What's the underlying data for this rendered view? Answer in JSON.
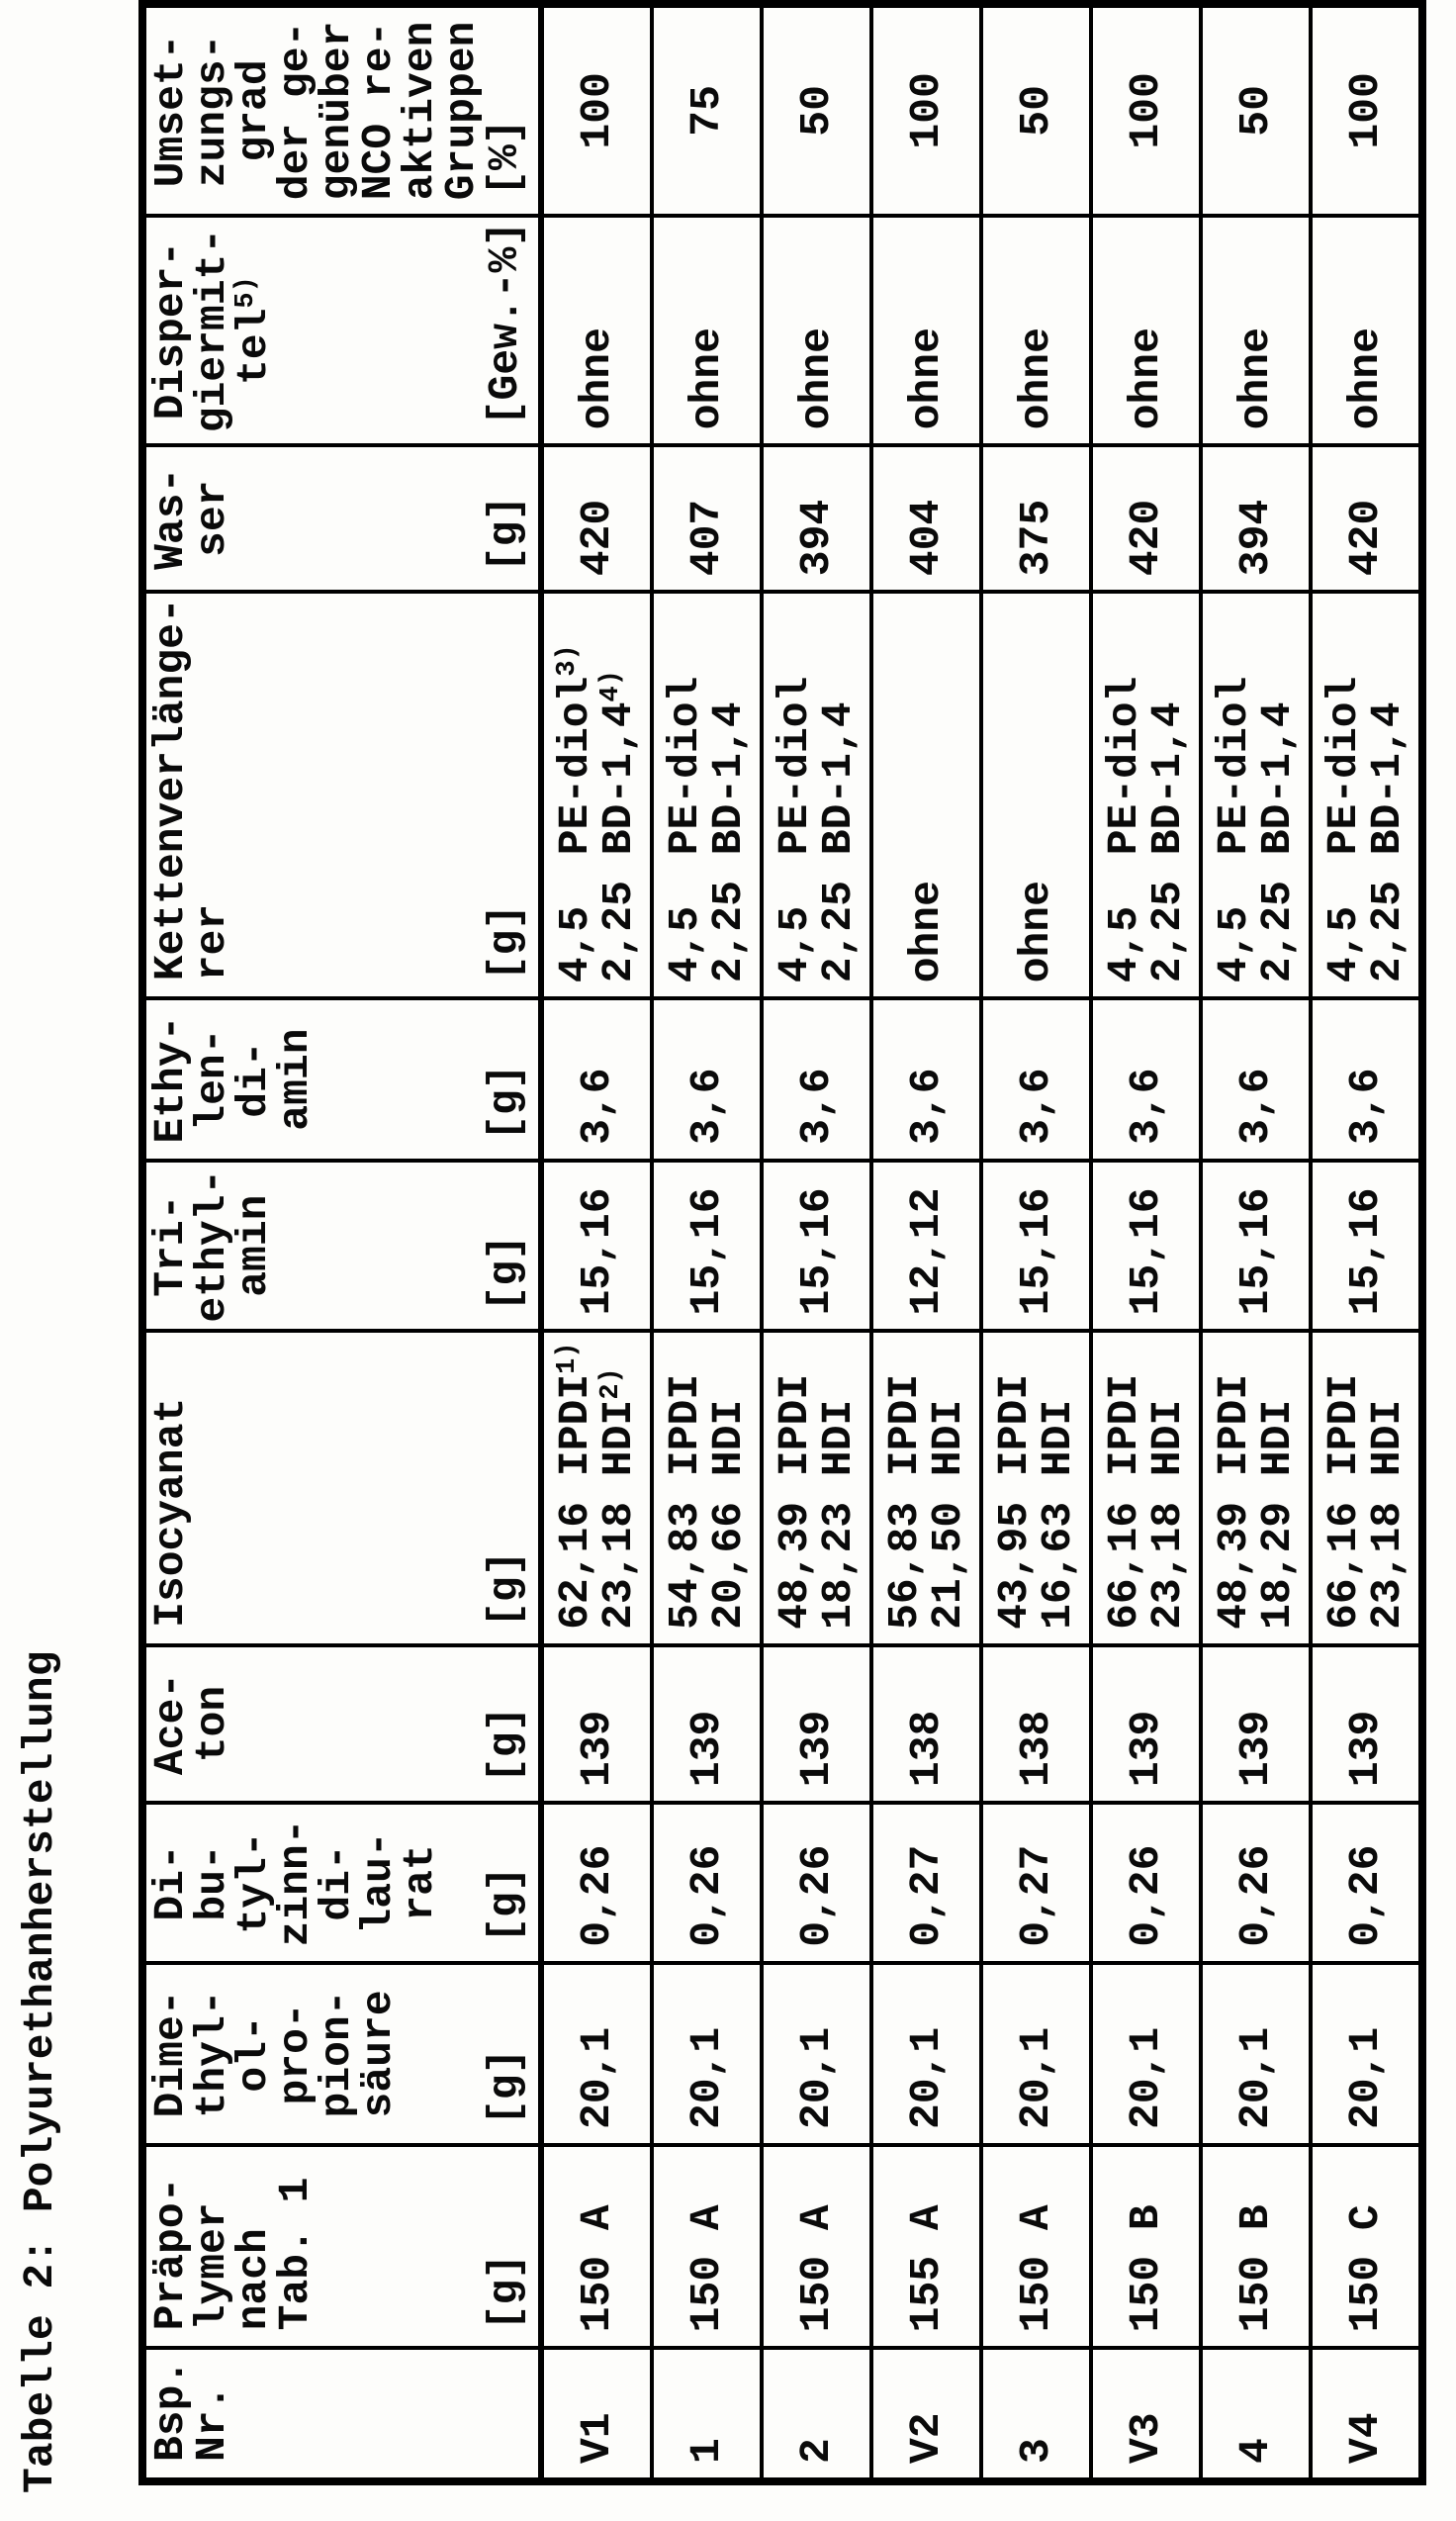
{
  "title": "Tabelle 2: Polyurethanherstellung",
  "table": {
    "columns": [
      {
        "id": "bsp",
        "label_lines": [
          "Bsp.",
          "Nr."
        ],
        "unit": ""
      },
      {
        "id": "praepolymer",
        "label_lines": [
          "Präpo-",
          "lymer",
          "nach",
          "Tab. 1"
        ],
        "unit": "[g]"
      },
      {
        "id": "dmps",
        "label_lines": [
          "Dime-",
          "thyl-",
          "ol-",
          "pro-",
          "pion-",
          "säure"
        ],
        "unit": "[g]"
      },
      {
        "id": "dbtl",
        "label_lines": [
          "Di-",
          "bu-",
          "tyl-",
          "zinn-",
          "di-",
          "lau-",
          "rat"
        ],
        "unit": "[g]"
      },
      {
        "id": "aceton",
        "label_lines": [
          "Ace-",
          "ton"
        ],
        "unit": "[g]"
      },
      {
        "id": "isocyanat",
        "label_lines": [
          "Isocyanat"
        ],
        "unit": "[g]"
      },
      {
        "id": "triethylamin",
        "label_lines": [
          "Tri-",
          "ethyl-",
          "amin"
        ],
        "unit": "[g]"
      },
      {
        "id": "ethylendiamin",
        "label_lines": [
          "Ethy-",
          "len-",
          "di-",
          "amin"
        ],
        "unit": "[g]"
      },
      {
        "id": "kettenverlaengerer",
        "label_lines": [
          "Kettenverlänge-",
          "rer"
        ],
        "unit": "[g]"
      },
      {
        "id": "wasser",
        "label_lines": [
          "Was-",
          "ser"
        ],
        "unit": "[g]"
      },
      {
        "id": "dispergiermittel",
        "label_lines": [
          "Disper-",
          "giermit-",
          {
            "t": "tel",
            "sup": "5)"
          }
        ],
        "unit": "[Gew.-%]"
      },
      {
        "id": "umsetzungsgrad",
        "label_lines": [
          "Umset-",
          "zungs-",
          "grad",
          "der ge-",
          "genüber",
          "NCO re-",
          "aktiven",
          "Gruppen"
        ],
        "unit": "[%]"
      }
    ],
    "rows": [
      {
        "bsp": "V1",
        "praepolymer": "150 A",
        "dmps": "20,1",
        "dbtl": "0,26",
        "aceton": "139",
        "isocyanat": [
          {
            "t": "62,16 IPDI",
            "sup": "1)"
          },
          {
            "t": "23,18 HDI",
            "sup": "2)"
          }
        ],
        "triethylamin": "15,16",
        "ethylendiamin": "3,6",
        "kettenverlaengerer": [
          {
            "t": "4,5  PE-diol",
            "sup": "3)"
          },
          {
            "t": "2,25 BD-1,4",
            "sup": "4)"
          }
        ],
        "wasser": "420",
        "dispergiermittel": "ohne",
        "umsetzungsgrad": "100"
      },
      {
        "bsp": "1",
        "praepolymer": "150 A",
        "dmps": "20,1",
        "dbtl": "0,26",
        "aceton": "139",
        "isocyanat": [
          "54,83 IPDI",
          "20,66 HDI"
        ],
        "triethylamin": "15,16",
        "ethylendiamin": "3,6",
        "kettenverlaengerer": [
          "4,5  PE-diol",
          "2,25 BD-1,4"
        ],
        "wasser": "407",
        "dispergiermittel": "ohne",
        "umsetzungsgrad": "75"
      },
      {
        "bsp": "2",
        "praepolymer": "150 A",
        "dmps": "20,1",
        "dbtl": "0,26",
        "aceton": "139",
        "isocyanat": [
          "48,39 IPDI",
          "18,23 HDI"
        ],
        "triethylamin": "15,16",
        "ethylendiamin": "3,6",
        "kettenverlaengerer": [
          "4,5  PE-diol",
          "2,25 BD-1,4"
        ],
        "wasser": "394",
        "dispergiermittel": "ohne",
        "umsetzungsgrad": "50"
      },
      {
        "bsp": "V2",
        "praepolymer": "155 A",
        "dmps": "20,1",
        "dbtl": "0,27",
        "aceton": "138",
        "isocyanat": [
          "56,83 IPDI",
          "21,50 HDI"
        ],
        "triethylamin": "12,12",
        "ethylendiamin": "3,6",
        "kettenverlaengerer": "ohne",
        "wasser": "404",
        "dispergiermittel": "ohne",
        "umsetzungsgrad": "100"
      },
      {
        "bsp": "3",
        "praepolymer": "150 A",
        "dmps": "20,1",
        "dbtl": "0,27",
        "aceton": "138",
        "isocyanat": [
          "43,95 IPDI",
          "16,63 HDI"
        ],
        "triethylamin": "15,16",
        "ethylendiamin": "3,6",
        "kettenverlaengerer": "ohne",
        "wasser": "375",
        "dispergiermittel": "ohne",
        "umsetzungsgrad": "50"
      },
      {
        "bsp": "V3",
        "praepolymer": "150 B",
        "dmps": "20,1",
        "dbtl": "0,26",
        "aceton": "139",
        "isocyanat": [
          "66,16 IPDI",
          "23,18 HDI"
        ],
        "triethylamin": "15,16",
        "ethylendiamin": "3,6",
        "kettenverlaengerer": [
          "4,5  PE-diol",
          "2,25 BD-1,4"
        ],
        "wasser": "420",
        "dispergiermittel": "ohne",
        "umsetzungsgrad": "100"
      },
      {
        "bsp": "4",
        "praepolymer": "150 B",
        "dmps": "20,1",
        "dbtl": "0,26",
        "aceton": "139",
        "isocyanat": [
          "48,39 IPDI",
          "18,29 HDI"
        ],
        "triethylamin": "15,16",
        "ethylendiamin": "3,6",
        "kettenverlaengerer": [
          "4,5  PE-diol",
          "2,25 BD-1,4"
        ],
        "wasser": "394",
        "dispergiermittel": "ohne",
        "umsetzungsgrad": "50"
      },
      {
        "bsp": "V4",
        "praepolymer": "150 C",
        "dmps": "20,1",
        "dbtl": "0,26",
        "aceton": "139",
        "isocyanat": [
          "66,16 IPDI",
          "23,18 HDI"
        ],
        "triethylamin": "15,16",
        "ethylendiamin": "3,6",
        "kettenverlaengerer": [
          "4,5  PE-diol",
          "2,25 BD-1,4"
        ],
        "wasser": "420",
        "dispergiermittel": "ohne",
        "umsetzungsgrad": "100"
      }
    ]
  }
}
